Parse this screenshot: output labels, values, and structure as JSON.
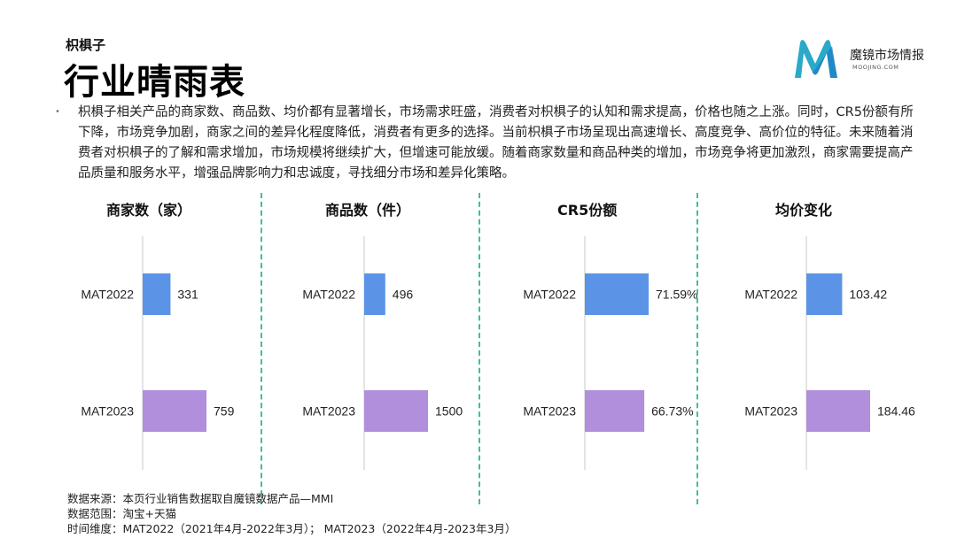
{
  "header": {
    "subtitle": "枳椇子",
    "title": "行业晴雨表"
  },
  "logo": {
    "name": "魔镜市场情报",
    "sub": "MOOJING.COM"
  },
  "description": "枳椇子相关产品的商家数、商品数、均价都有显著增长，市场需求旺盛，消费者对枳椇子的认知和需求提高，价格也随之上涨。同时，CR5份额有所下降，市场竞争加剧，商家之间的差异化程度降低，消费者有更多的选择。当前枳椇子市场呈现出高速增长、高度竞争、高价位的特征。未来随着消费者对枳椇子的了解和需求增加，市场规模将继续扩大，但增速可能放缓。随着商家数量和商品种类的增加，市场竞争将更加激烈，商家需要提高产品质量和服务水平，增强品牌影响力和忠诚度，寻找细分市场和差异化策略。",
  "colors": {
    "mat2022": "#5b94e6",
    "mat2023": "#b18fdc",
    "divider": "#3cc48a",
    "axis": "#c8c8c8"
  },
  "chart_data": [
    {
      "type": "bar",
      "title": "商家数（家）",
      "categories": [
        "MAT2022",
        "MAT2023"
      ],
      "values": [
        331,
        759
      ],
      "labels": [
        "331",
        "759"
      ],
      "max": 759
    },
    {
      "type": "bar",
      "title": "商品数（件）",
      "categories": [
        "MAT2022",
        "MAT2023"
      ],
      "values": [
        496,
        1500
      ],
      "labels": [
        "496",
        "1500"
      ],
      "max": 1500
    },
    {
      "type": "bar",
      "title": "CR5份额",
      "categories": [
        "MAT2022",
        "MAT2023"
      ],
      "values": [
        71.59,
        66.73
      ],
      "labels": [
        "71.59%",
        "66.73%"
      ],
      "max": 71.59
    },
    {
      "type": "bar",
      "title": "均价变化",
      "categories": [
        "MAT2022",
        "MAT2023"
      ],
      "values": [
        103.42,
        184.46
      ],
      "labels": [
        "103.42",
        "184.46"
      ],
      "max": 184.46
    }
  ],
  "footer": {
    "source": "数据来源：本页行业销售数据取自魔镜数据产品—MMI",
    "scope": "数据范围：淘宝+天猫",
    "time": "时间维度：MAT2022（2021年4月-2022年3月）； MAT2023（2022年4月-2023年3月）"
  }
}
